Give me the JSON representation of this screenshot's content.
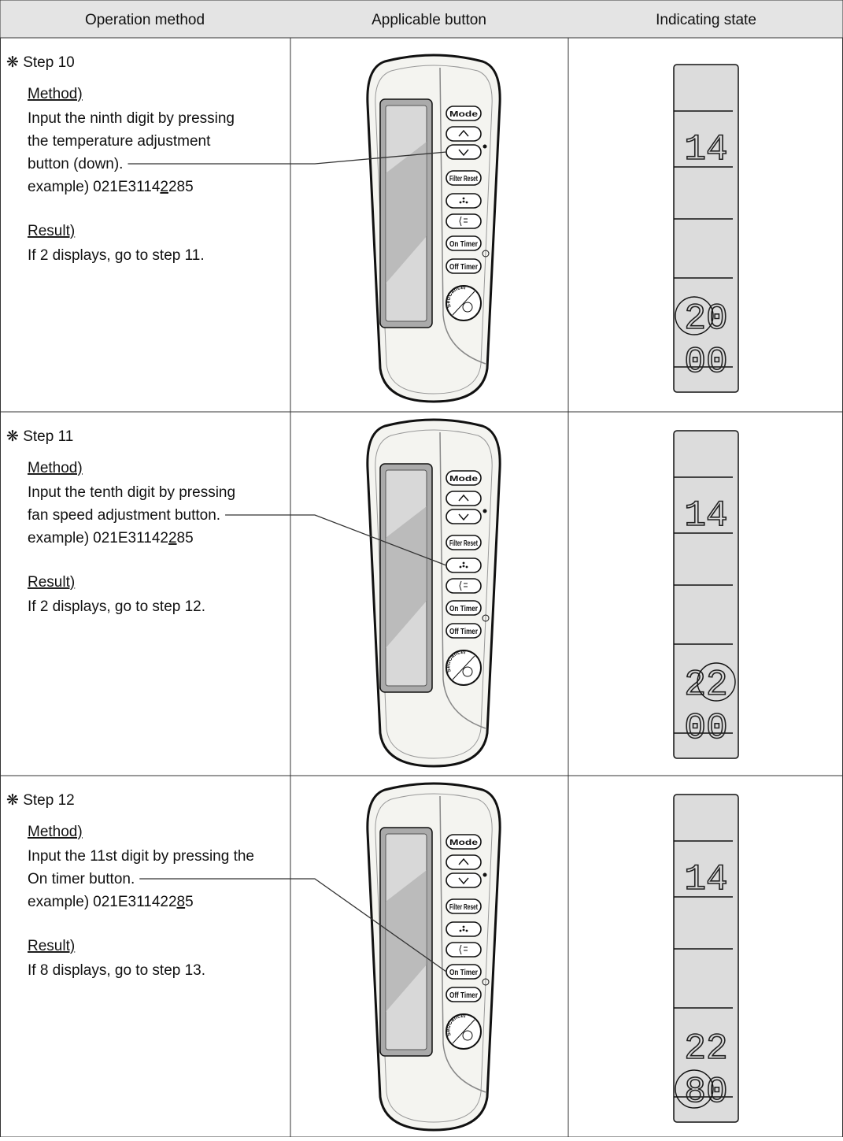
{
  "header": {
    "columns": [
      "Operation method",
      "Applicable button",
      "Indicating state"
    ]
  },
  "remote": {
    "buttons": [
      "Mode",
      "Filter Reset",
      "On Timer",
      "Off Timer",
      "Set/Cancel"
    ]
  },
  "steps": [
    {
      "title": "❋ Step 10",
      "method_label": "Method)",
      "method_lines": [
        "Input the ninth digit by pressing",
        "the temperature adjustment",
        "button (down)."
      ],
      "example": {
        "label": "example)",
        "before": "021E3114",
        "underlined": "2",
        "after": "285"
      },
      "result_label": "Result)",
      "result": "If 2 displays, go to step 11.",
      "display": [
        "14",
        "20",
        "00"
      ]
    },
    {
      "title": "❋ Step 11",
      "method_label": "Method)",
      "method_lines": [
        "Input the tenth digit by pressing",
        "fan speed adjustment button."
      ],
      "example": {
        "label": "example)",
        "before": "021E31142",
        "underlined": "2",
        "after": "85"
      },
      "result_label": "Result)",
      "result": "If 2 displays, go to step 12.",
      "display": [
        "14",
        "22",
        "00"
      ]
    },
    {
      "title": "❋ Step 12",
      "method_label": "Method)",
      "method_lines": [
        "Input the 11st digit by pressing the",
        "On timer button."
      ],
      "example": {
        "label": "example)",
        "before": "021E311422",
        "underlined": "8",
        "after": "5"
      },
      "result_label": "Result)",
      "result": "If 8 displays, go to step 13.",
      "display": [
        "14",
        "22",
        "80"
      ]
    }
  ]
}
